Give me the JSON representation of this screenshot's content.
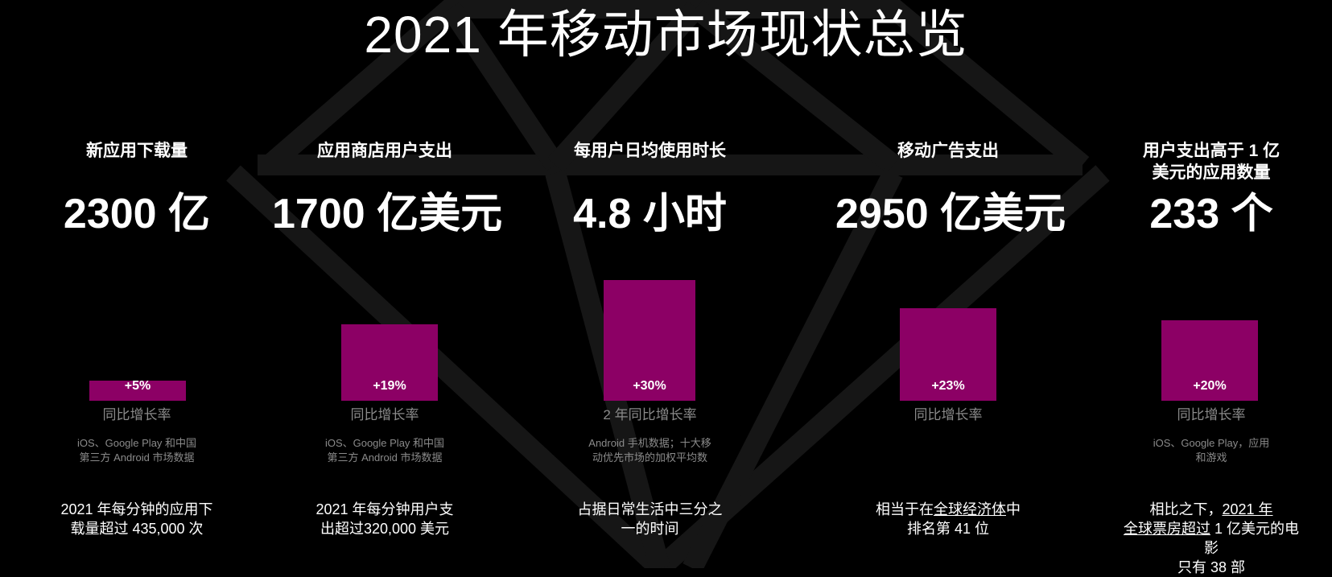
{
  "title": "2021 年移动市场现状总览",
  "metrics": [
    {
      "label": "新应用下载量",
      "value": "2300 亿",
      "growth_value": 0.05,
      "growth_label": "+5%",
      "growth_caption": "同比增长率",
      "source_line1": "iOS、Google Play 和中国",
      "source_line2": "第三方 Android 市场数据",
      "note_line1": "2021 年每分钟的应用下",
      "note_line2": "载量超过 435,000 次"
    },
    {
      "label": "应用商店用户支出",
      "value": "1700 亿美元",
      "growth_value": 0.19,
      "growth_label": "+19%",
      "growth_caption": "同比增长率",
      "source_line1": "iOS、Google Play 和中国",
      "source_line2": "第三方 Android 市场数据",
      "note_line1": "2021 年每分钟用户支",
      "note_line2": "出超过320,000 美元"
    },
    {
      "label": "每用户日均使用时长",
      "value": "4.8 小时",
      "growth_value": 0.3,
      "growth_label": "+30%",
      "growth_caption": "2 年同比增长率",
      "source_line1": "Android 手机数据；十大移",
      "source_line2": "动优先市场的加权平均数",
      "note_line1": "占据日常生活中三分之",
      "note_line2": "一的时间"
    },
    {
      "label": "移动广告支出",
      "value": "2950 亿美元",
      "growth_value": 0.23,
      "growth_label": "+23%",
      "growth_caption": "同比增长率",
      "note_line1_pre": "相当于在",
      "note_line1_link": "全球经济体",
      "note_line1_post": "中",
      "note_line2": "排名第 41 位"
    },
    {
      "label_line1": "用户支出高于 1 亿",
      "label_line2": "美元的应用数量",
      "value": "233 个",
      "growth_value": 0.2,
      "growth_label": "+20%",
      "growth_caption": "同比增长率",
      "source_line1": "iOS、Google Play，应用",
      "source_line2": "和游戏",
      "note_line1_pre": "相比之下，",
      "note_line1_link": "2021 年",
      "note_line2_link": "全球票房超过",
      "note_line2_post": " 1 亿美元的电影",
      "note_line3": "只有 38 部"
    }
  ]
}
